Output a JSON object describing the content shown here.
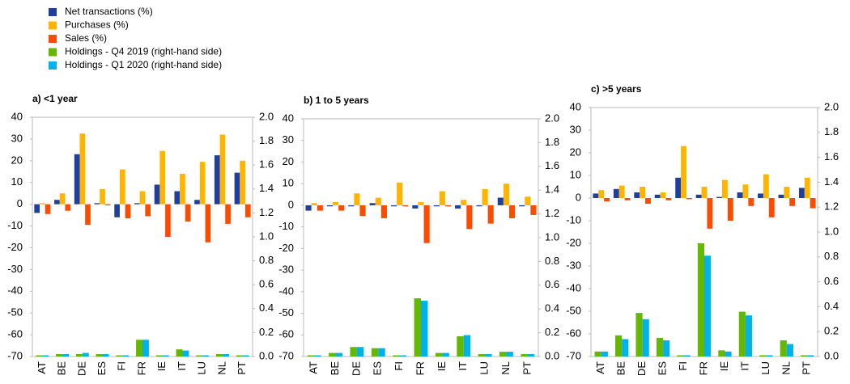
{
  "chart_data": [
    {
      "type": "bar",
      "title": "a) <1 year",
      "categories": [
        "AT",
        "BE",
        "DE",
        "ES",
        "FI",
        "FR",
        "IE",
        "IT",
        "LU",
        "NL",
        "PT"
      ],
      "series": [
        {
          "name": "Net transactions (%)",
          "color": "#1f3f9e",
          "values": [
            -4,
            2,
            23,
            0.5,
            -6,
            0.5,
            9,
            6,
            2,
            22.5,
            14.5
          ]
        },
        {
          "name": "Purchases (%)",
          "color": "#ffb400",
          "values": [
            0.5,
            5,
            32.5,
            7,
            16,
            6,
            24.5,
            14,
            19.5,
            32,
            20
          ]
        },
        {
          "name": "Sales (%)",
          "color": "#ff4b00",
          "values": [
            -4.5,
            -3,
            -9.5,
            -0.5,
            -6.5,
            -5.5,
            -15,
            -8,
            -17.5,
            -9,
            -6
          ]
        },
        {
          "name": "Holdings - Q4 2019 (right-hand side)",
          "color": "#65b800",
          "axis": "y2",
          "values": [
            0.01,
            0.02,
            0.02,
            0.02,
            0.01,
            0.14,
            0.01,
            0.06,
            0.01,
            0.02,
            0.01
          ]
        },
        {
          "name": "Holdings - Q1 2020 (right-hand side)",
          "color": "#00b1ea",
          "axis": "y2",
          "values": [
            0.01,
            0.02,
            0.03,
            0.02,
            0.01,
            0.14,
            0.01,
            0.05,
            0.01,
            0.02,
            0.01
          ]
        }
      ],
      "ylim": [
        -70,
        40
      ],
      "yticks": [
        -70,
        -60,
        -50,
        -40,
        -30,
        -20,
        -10,
        0,
        10,
        20,
        30,
        40
      ],
      "y2lim": [
        0,
        2
      ],
      "y2ticks": [
        {
          "value": 0,
          "label": "0.0"
        },
        0.2,
        0.4,
        0.6,
        0.8,
        {
          "value": 1,
          "label": "1.0"
        },
        1.2,
        1.4,
        1.6,
        1.8,
        {
          "value": 2,
          "label": "2.0"
        }
      ]
    },
    {
      "type": "bar",
      "title": "b) 1 to 5 years",
      "categories": [
        "AT",
        "BE",
        "DE",
        "ES",
        "FI",
        "FR",
        "IE",
        "IT",
        "LU",
        "NL",
        "PT"
      ],
      "series": [
        {
          "name": "Net transactions (%)",
          "color": "#1f3f9e",
          "values": [
            -2.5,
            -0.5,
            -0.5,
            1,
            -0.5,
            -1.5,
            -0.5,
            -1.5,
            -0.5,
            3.5,
            -0.5
          ]
        },
        {
          "name": "Purchases (%)",
          "color": "#ffb400",
          "values": [
            1,
            1.5,
            5.5,
            3.5,
            10.5,
            1.5,
            6.5,
            2.5,
            7.5,
            10,
            4
          ]
        },
        {
          "name": "Sales (%)",
          "color": "#ff4b00",
          "values": [
            -2.5,
            -2.5,
            -5,
            -6,
            -0.5,
            -17.5,
            -0.5,
            -11,
            -8.5,
            -6,
            -4.5
          ]
        },
        {
          "name": "Holdings - Q4 2019 (right-hand side)",
          "color": "#65b800",
          "axis": "y2",
          "values": [
            0.01,
            0.03,
            0.08,
            0.07,
            0.01,
            0.49,
            0.03,
            0.17,
            0.02,
            0.04,
            0.02
          ]
        },
        {
          "name": "Holdings - Q1 2020 (right-hand side)",
          "color": "#00b1ea",
          "axis": "y2",
          "values": [
            0.01,
            0.03,
            0.08,
            0.07,
            0.01,
            0.47,
            0.03,
            0.18,
            0.02,
            0.04,
            0.02
          ]
        }
      ],
      "ylim": [
        -70,
        40
      ],
      "yticks": [
        -70,
        -60,
        -50,
        -40,
        -30,
        -20,
        -10,
        0,
        10,
        20,
        30,
        40
      ],
      "y2lim": [
        0,
        2
      ],
      "y2ticks": [
        {
          "value": 0,
          "label": "0.0"
        },
        0.2,
        0.4,
        0.6,
        0.8,
        {
          "value": 1,
          "label": "1.0"
        },
        1.2,
        1.4,
        1.6,
        1.8,
        {
          "value": 2,
          "label": "2.0"
        }
      ]
    },
    {
      "type": "bar",
      "title": "c) >5 years",
      "categories": [
        "AT",
        "BE",
        "DE",
        "ES",
        "FI",
        "FR",
        "IE",
        "IT",
        "LU",
        "NL",
        "PT"
      ],
      "series": [
        {
          "name": "Net transactions (%)",
          "color": "#1f3f9e",
          "values": [
            2,
            4,
            2.5,
            1.5,
            9,
            1.5,
            0.5,
            2.5,
            2,
            1.5,
            4.5
          ]
        },
        {
          "name": "Purchases (%)",
          "color": "#ffb400",
          "values": [
            3.5,
            5.5,
            5,
            2.5,
            23,
            5,
            8,
            6,
            10.5,
            5,
            9
          ]
        },
        {
          "name": "Sales (%)",
          "color": "#ff4b00",
          "values": [
            -1.5,
            -1,
            -2.5,
            -1,
            -0.5,
            -13.5,
            -10,
            -3.5,
            -8.5,
            -3.5,
            -4.5
          ]
        },
        {
          "name": "Holdings - Q4 2019 (right-hand side)",
          "color": "#65b800",
          "axis": "y2",
          "values": [
            0.04,
            0.17,
            0.35,
            0.15,
            0.01,
            0.91,
            0.05,
            0.36,
            0.01,
            0.13,
            0.01
          ]
        },
        {
          "name": "Holdings - Q1 2020 (right-hand side)",
          "color": "#00b1ea",
          "axis": "y2",
          "values": [
            0.04,
            0.14,
            0.3,
            0.13,
            0.01,
            0.81,
            0.04,
            0.33,
            0.01,
            0.1,
            0.01
          ]
        }
      ],
      "ylim": [
        -70,
        40
      ],
      "yticks": [
        -70,
        -60,
        -50,
        -40,
        -30,
        -20,
        -10,
        0,
        10,
        20,
        30,
        40
      ],
      "y2lim": [
        0,
        2
      ],
      "y2ticks": [
        {
          "value": 0,
          "label": "0.0"
        },
        0.2,
        0.4,
        0.6,
        0.8,
        {
          "value": 1,
          "label": "1.0"
        },
        1.2,
        1.4,
        1.6,
        1.8,
        {
          "value": 2,
          "label": "2.0"
        }
      ]
    }
  ]
}
